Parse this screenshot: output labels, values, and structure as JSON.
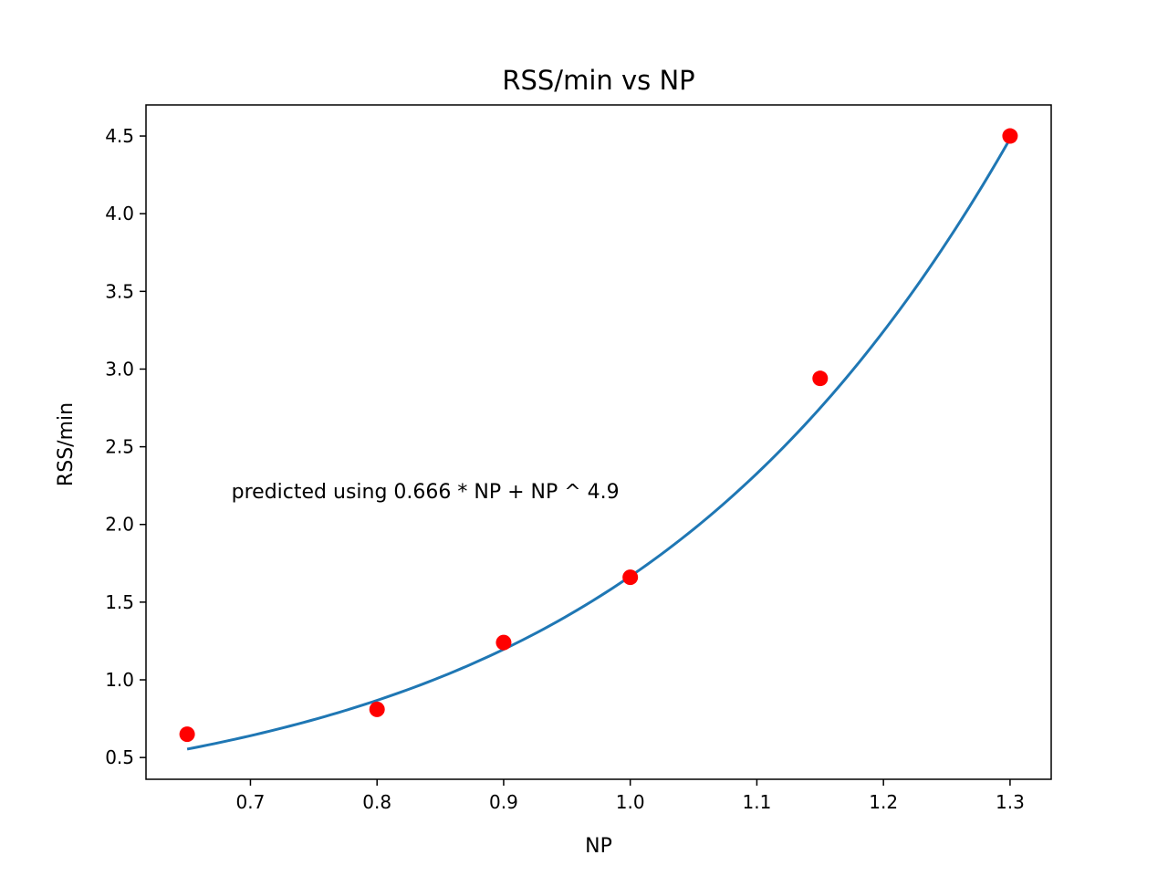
{
  "chart_data": {
    "type": "scatter",
    "title": "RSS/min vs NP",
    "xlabel": "NP",
    "ylabel": "RSS/min",
    "xlim": [
      0.6175,
      1.3325
    ],
    "ylim": [
      0.36,
      4.7
    ],
    "xticks": [
      0.7,
      0.8,
      0.9,
      1.0,
      1.1,
      1.2,
      1.3
    ],
    "xtick_labels": [
      "0.7",
      "0.8",
      "0.9",
      "1.0",
      "1.1",
      "1.2",
      "1.3"
    ],
    "yticks": [
      0.5,
      1.0,
      1.5,
      2.0,
      2.5,
      3.0,
      3.5,
      4.0,
      4.5
    ],
    "ytick_labels": [
      "0.5",
      "1.0",
      "1.5",
      "2.0",
      "2.5",
      "3.0",
      "3.5",
      "4.0",
      "4.5"
    ],
    "grid": false,
    "series": [
      {
        "type": "scatter",
        "color": "#ff0000",
        "x": [
          0.65,
          0.8,
          0.9,
          1.0,
          1.15,
          1.3
        ],
        "y": [
          0.65,
          0.81,
          1.24,
          1.66,
          2.94,
          4.5
        ]
      },
      {
        "type": "line",
        "color": "#1f77b4",
        "formula": "0.666 * NP + NP ^ 4.9",
        "x_range": [
          0.65,
          1.3
        ]
      }
    ],
    "annotations": [
      {
        "text": "predicted using 0.666 * NP + NP ^ 4.9",
        "x": 0.685,
        "y": 2.17
      }
    ]
  }
}
